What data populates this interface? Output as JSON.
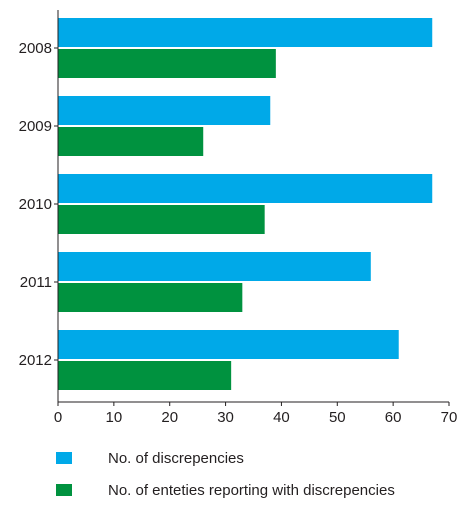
{
  "chart_data": {
    "type": "bar",
    "orientation": "horizontal",
    "categories": [
      "2008",
      "2009",
      "2010",
      "2011",
      "2012"
    ],
    "series": [
      {
        "name": "No. of discrepencies",
        "color": "#00a9e8",
        "values": [
          67,
          38,
          67,
          56,
          61
        ]
      },
      {
        "name": "No. of enteties reporting with discrepencies",
        "color": "#00923f",
        "values": [
          39,
          26,
          37,
          33,
          31
        ]
      }
    ],
    "xlim": [
      0,
      70
    ],
    "xticks": [
      "0",
      "10",
      "20",
      "30",
      "40",
      "50",
      "60",
      "70"
    ],
    "grid": false,
    "legend_position": "bottom"
  }
}
